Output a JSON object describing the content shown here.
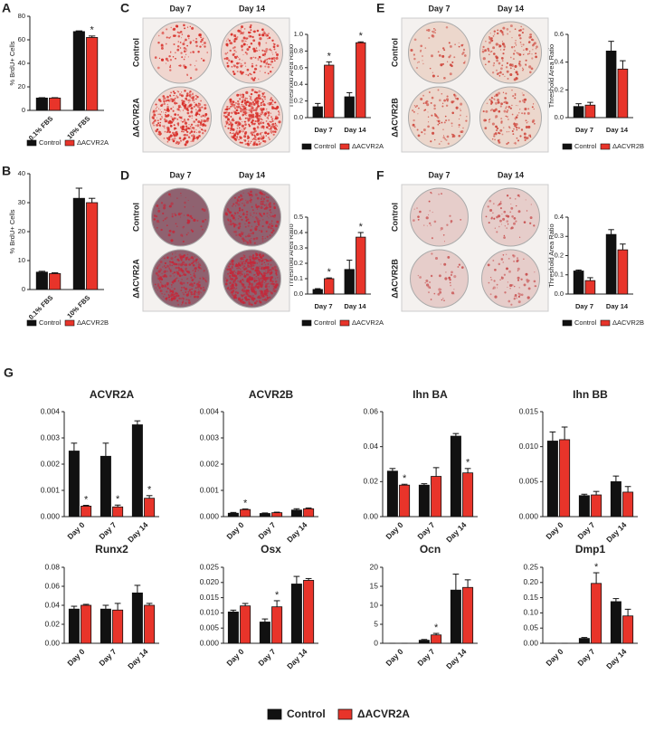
{
  "figure": {
    "g_label": "G",
    "g_legend": [
      {
        "name": "Control",
        "color": "#111111"
      },
      {
        "name": "ΔACVR2A",
        "color": "#e8342a"
      }
    ]
  },
  "chart_data": [
    {
      "type": "bar",
      "panel": "A",
      "ylabel": "% BrdU+ Cells",
      "categories": [
        "0.1% FBS",
        "10% FBS"
      ],
      "ylim": [
        0,
        80
      ],
      "yticks": [
        0,
        20,
        40,
        60,
        80
      ],
      "series": [
        {
          "name": "Control",
          "color": "#111111",
          "values": [
            10.5,
            67
          ],
          "errors": [
            0.3,
            0.6
          ]
        },
        {
          "name": "ΔACVR2A",
          "color": "#e8342a",
          "values": [
            10.5,
            62
          ],
          "errors": [
            0.3,
            1.2
          ],
          "annotations": [
            null,
            "*"
          ]
        }
      ]
    },
    {
      "type": "bar",
      "panel": "B",
      "ylabel": "% BrdU+ Cells",
      "categories": [
        "0.1% FBS",
        "10% FBS"
      ],
      "ylim": [
        0,
        40
      ],
      "yticks": [
        0,
        10,
        20,
        30,
        40
      ],
      "series": [
        {
          "name": "Control",
          "color": "#111111",
          "values": [
            6,
            31.5
          ],
          "errors": [
            0.3,
            3.5
          ]
        },
        {
          "name": "ΔACVR2B",
          "color": "#e8342a",
          "values": [
            5.5,
            30
          ],
          "errors": [
            0.3,
            1.5
          ]
        }
      ]
    },
    {
      "type": "bar",
      "panel": "C",
      "ylabel": "Threshold Area Ratio",
      "photos": {
        "columns": [
          "Day 7",
          "Day 14"
        ],
        "rows": [
          "Control",
          "ΔACVR2A"
        ]
      },
      "categories": [
        "Day 7",
        "Day 14"
      ],
      "ylim": [
        0,
        1
      ],
      "yticks": [
        {
          "value": 0,
          "label": "0.0"
        },
        0.2,
        0.4,
        0.6,
        0.8,
        {
          "value": 1,
          "label": "1.0"
        }
      ],
      "series": [
        {
          "name": "Control",
          "color": "#111111",
          "values": [
            0.13,
            0.25
          ],
          "errors": [
            0.04,
            0.05
          ]
        },
        {
          "name": "ΔACVR2A",
          "color": "#e8342a",
          "values": [
            0.63,
            0.9
          ],
          "errors": [
            0.04,
            0.01
          ],
          "annotations": [
            "*",
            "*"
          ]
        }
      ]
    },
    {
      "type": "bar",
      "panel": "D",
      "ylabel": "Threshold Area Ratio",
      "photos": {
        "columns": [
          "Day 7",
          "Day 14"
        ],
        "rows": [
          "Control",
          "ΔACVR2A"
        ]
      },
      "categories": [
        "Day 7",
        "Day 14"
      ],
      "ylim": [
        0,
        0.5
      ],
      "yticks": [
        {
          "value": 0,
          "label": "0.0"
        },
        0.1,
        0.2,
        0.3,
        0.4,
        0.5
      ],
      "series": [
        {
          "name": "Control",
          "color": "#111111",
          "values": [
            0.03,
            0.16
          ],
          "errors": [
            0.005,
            0.06
          ]
        },
        {
          "name": "ΔACVR2A",
          "color": "#e8342a",
          "values": [
            0.1,
            0.37
          ],
          "errors": [
            0.005,
            0.03
          ],
          "annotations": [
            "*",
            "*"
          ]
        }
      ]
    },
    {
      "type": "bar",
      "panel": "E",
      "ylabel": "Threshold Area Ratio",
      "photos": {
        "columns": [
          "Day 7",
          "Day 14"
        ],
        "rows": [
          "Control",
          "ΔACVR2B"
        ]
      },
      "categories": [
        "Day 7",
        "Day 14"
      ],
      "ylim": [
        0,
        0.6
      ],
      "yticks": [
        {
          "value": 0,
          "label": "0.0"
        },
        0.2,
        0.4,
        0.6
      ],
      "series": [
        {
          "name": "Control",
          "color": "#111111",
          "values": [
            0.08,
            0.48
          ],
          "errors": [
            0.02,
            0.07
          ]
        },
        {
          "name": "ΔACVR2B",
          "color": "#e8342a",
          "values": [
            0.09,
            0.35
          ],
          "errors": [
            0.02,
            0.06
          ]
        }
      ]
    },
    {
      "type": "bar",
      "panel": "F",
      "ylabel": "Threshold Area Ratio",
      "photos": {
        "columns": [
          "Day 7",
          "Day 14"
        ],
        "rows": [
          "Control",
          "ΔACVR2B"
        ]
      },
      "categories": [
        "Day 7",
        "Day 14"
      ],
      "ylim": [
        0,
        0.4
      ],
      "yticks": [
        {
          "value": 0,
          "label": "0.0"
        },
        0.1,
        0.2,
        0.3,
        0.4
      ],
      "series": [
        {
          "name": "Control",
          "color": "#111111",
          "values": [
            0.12,
            0.31
          ],
          "errors": [
            0.005,
            0.025
          ]
        },
        {
          "name": "ΔACVR2B",
          "color": "#e8342a",
          "values": [
            0.07,
            0.23
          ],
          "errors": [
            0.015,
            0.03
          ]
        }
      ]
    },
    {
      "type": "bar",
      "title": "ACVR2A",
      "categories": [
        "Day 0",
        "Day 7",
        "Day 14"
      ],
      "ylim": [
        0,
        0.004
      ],
      "yticks": [
        {
          "value": 0,
          "label": "0.000"
        },
        0.001,
        0.002,
        0.003,
        0.004
      ],
      "series": [
        {
          "color": "#111111",
          "values": [
            0.0025,
            0.0023,
            0.0035
          ],
          "errors": [
            0.0003,
            0.0005,
            0.00015
          ]
        },
        {
          "color": "#e8342a",
          "values": [
            0.0004,
            0.00037,
            0.0007
          ],
          "errors": [
            3e-05,
            7e-05,
            0.0001
          ],
          "annotations": [
            "*",
            "*",
            "*"
          ]
        }
      ]
    },
    {
      "type": "bar",
      "title": "ACVR2B",
      "categories": [
        "Day 0",
        "Day 7",
        "Day 14"
      ],
      "ylim": [
        0,
        0.004
      ],
      "yticks": [
        {
          "value": 0,
          "label": "0.000"
        },
        0.001,
        0.002,
        0.003,
        0.004
      ],
      "series": [
        {
          "color": "#111111",
          "values": [
            0.00013,
            0.00012,
            0.00025
          ],
          "errors": [
            3e-05,
            2e-05,
            5e-05
          ]
        },
        {
          "color": "#e8342a",
          "values": [
            0.00027,
            0.00015,
            0.0003
          ],
          "errors": [
            2e-05,
            2e-05,
            3e-05
          ],
          "annotations": [
            "*",
            null,
            null
          ]
        }
      ]
    },
    {
      "type": "bar",
      "title": "Ihn BA",
      "categories": [
        "Day 0",
        "Day 7",
        "Day 14"
      ],
      "ylim": [
        0,
        0.06
      ],
      "yticks": [
        {
          "value": 0,
          "label": "0.00"
        },
        0.02,
        0.04,
        0.06
      ],
      "series": [
        {
          "color": "#111111",
          "values": [
            0.026,
            0.018,
            0.046
          ],
          "errors": [
            0.0015,
            0.0008,
            0.0015
          ]
        },
        {
          "color": "#e8342a",
          "values": [
            0.018,
            0.023,
            0.025
          ],
          "errors": [
            0.0005,
            0.005,
            0.0025
          ],
          "annotations": [
            "*",
            null,
            "*"
          ]
        }
      ]
    },
    {
      "type": "bar",
      "title": "Ihn BB",
      "categories": [
        "Day 0",
        "Day 7",
        "Day 14"
      ],
      "ylim": [
        0,
        0.015
      ],
      "yticks": [
        {
          "value": 0,
          "label": "0.000"
        },
        0.005,
        {
          "value": 0.01,
          "label": "0.010"
        },
        0.015
      ],
      "series": [
        {
          "color": "#111111",
          "values": [
            0.0108,
            0.003,
            0.005
          ],
          "errors": [
            0.0013,
            0.0002,
            0.0008
          ]
        },
        {
          "color": "#e8342a",
          "values": [
            0.011,
            0.0031,
            0.0035
          ],
          "errors": [
            0.0018,
            0.0005,
            0.0008
          ]
        }
      ]
    },
    {
      "type": "bar",
      "title": "Runx2",
      "categories": [
        "Day 0",
        "Day 7",
        "Day 14"
      ],
      "ylim": [
        0,
        0.08
      ],
      "yticks": [
        {
          "value": 0,
          "label": "0.00"
        },
        0.02,
        0.04,
        0.06,
        0.08
      ],
      "series": [
        {
          "color": "#111111",
          "values": [
            0.036,
            0.036,
            0.053
          ],
          "errors": [
            0.003,
            0.004,
            0.008
          ]
        },
        {
          "color": "#e8342a",
          "values": [
            0.04,
            0.035,
            0.04
          ],
          "errors": [
            0.001,
            0.007,
            0.002
          ]
        }
      ]
    },
    {
      "type": "bar",
      "title": "Osx",
      "categories": [
        "Day 0",
        "Day 7",
        "Day 14"
      ],
      "ylim": [
        0,
        0.025
      ],
      "yticks": [
        {
          "value": 0,
          "label": "0.000"
        },
        0.005,
        {
          "value": 0.01,
          "label": "0.010"
        },
        0.015,
        {
          "value": 0.02,
          "label": "0.020"
        },
        0.025
      ],
      "series": [
        {
          "color": "#111111",
          "values": [
            0.0103,
            0.007,
            0.0195
          ],
          "errors": [
            0.0006,
            0.001,
            0.0025
          ]
        },
        {
          "color": "#e8342a",
          "values": [
            0.0123,
            0.012,
            0.0207
          ],
          "errors": [
            0.0008,
            0.002,
            0.0006
          ],
          "annotations": [
            null,
            "*",
            null
          ]
        }
      ]
    },
    {
      "type": "bar",
      "title": "Ocn",
      "categories": [
        "Day 0",
        "Day 7",
        "Day 14"
      ],
      "ylim": [
        0,
        20
      ],
      "yticks": [
        0,
        5,
        10,
        15,
        20
      ],
      "series": [
        {
          "color": "#111111",
          "values": [
            0,
            0.8,
            14
          ],
          "errors": [
            0,
            0.2,
            4.2
          ]
        },
        {
          "color": "#e8342a",
          "values": [
            0,
            2.2,
            14.7
          ],
          "errors": [
            0,
            0.4,
            2
          ],
          "annotations": [
            null,
            "*",
            null
          ]
        }
      ]
    },
    {
      "type": "bar",
      "title": "Dmp1",
      "categories": [
        "Day 0",
        "Day 7",
        "Day 14"
      ],
      "ylim": [
        0,
        0.25
      ],
      "yticks": [
        {
          "value": 0,
          "label": "0.00"
        },
        0.05,
        {
          "value": 0.1,
          "label": "0.10"
        },
        0.15,
        {
          "value": 0.2,
          "label": "0.20"
        },
        0.25
      ],
      "series": [
        {
          "color": "#111111",
          "values": [
            0,
            0.016,
            0.137
          ],
          "errors": [
            0,
            0.003,
            0.01
          ]
        },
        {
          "color": "#e8342a",
          "values": [
            0,
            0.197,
            0.09
          ],
          "errors": [
            0,
            0.035,
            0.022
          ],
          "annotations": [
            null,
            "*",
            null
          ]
        }
      ]
    }
  ]
}
